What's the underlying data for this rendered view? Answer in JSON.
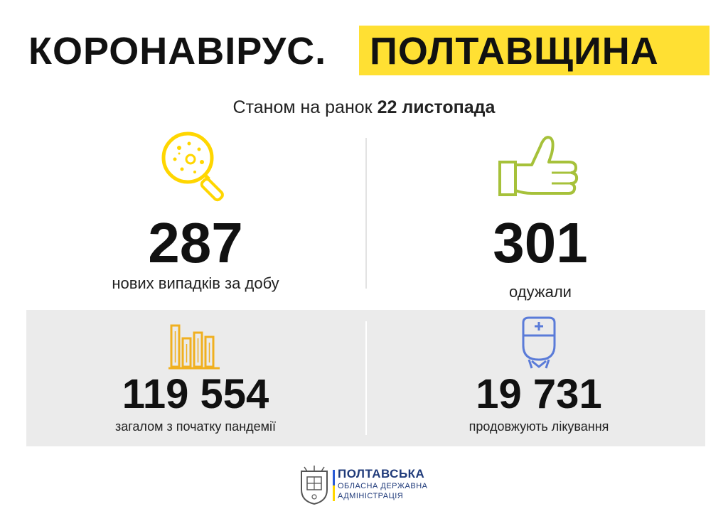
{
  "header": {
    "title_left": "КОРОНАВІРУС.",
    "title_right": "ПОЛТАВЩИНА",
    "highlight_color": "#ffe033"
  },
  "subtitle": {
    "prefix": "Станом на ранок",
    "date": "22 листопада"
  },
  "stats": {
    "new_cases": {
      "value": "287",
      "label": "нових випадків за добу",
      "icon": "virus-magnifier-icon",
      "icon_color": "#ffd600"
    },
    "recovered": {
      "value": "301",
      "label": "одужали",
      "icon": "thumbs-up-icon",
      "icon_color": "#a6c13a"
    },
    "total": {
      "value": "119 554",
      "label": "загалом з початку пандемії",
      "icon": "bar-chart-icon",
      "icon_color": "#f0b020"
    },
    "treating": {
      "value": "19 731",
      "label": "продовжують лікування",
      "icon": "doctor-icon",
      "icon_color": "#5a7bd8"
    }
  },
  "footer": {
    "org_line1": "ПОЛТАВСЬКА",
    "org_line2": "ОБЛАСНА ДЕРЖАВНА",
    "org_line3": "АДМІНІСТРАЦІЯ",
    "crest_icon": "coat-of-arms-icon",
    "text_color": "#1f3a7a"
  }
}
